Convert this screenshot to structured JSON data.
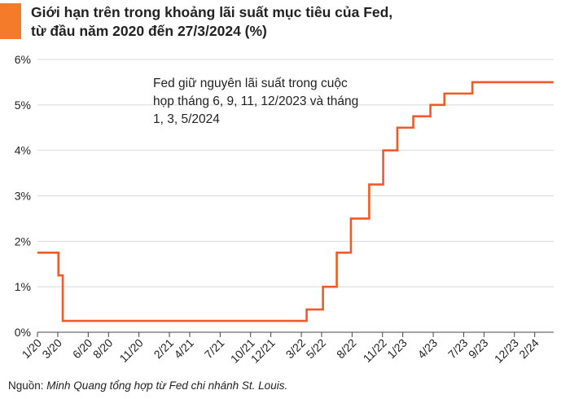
{
  "title_lines": [
    "Giới hạn trên trong khoảng lãi suất mục tiêu của Fed,",
    "từ đầu năm 2020 đến 27/3/2024 (%)"
  ],
  "source": {
    "prefix": "Nguồn: ",
    "text": "Minh Quang tổng hợp từ Fed chi nhánh St. Louis."
  },
  "colors": {
    "accent": "#f47b2a",
    "line": "#f05a28",
    "grid": "#d9d9d9",
    "axis": "#444444"
  },
  "chart_data": {
    "type": "line",
    "title": "Giới hạn trên trong khoảng lãi suất mục tiêu của Fed, từ đầu năm 2020 đến 27/3/2024 (%)",
    "xlabel": "",
    "ylabel": "",
    "ylim": [
      0,
      6
    ],
    "y_ticks": [
      0,
      1,
      2,
      3,
      4,
      5,
      6
    ],
    "y_tick_labels": [
      "0%",
      "1%",
      "2%",
      "3%",
      "4%",
      "5%",
      "6%"
    ],
    "x_tick_labels": [
      "1/20",
      "3/20",
      "6/20",
      "8/20",
      "11/20",
      "2/21",
      "4/21",
      "7/21",
      "10/21",
      "12/21",
      "3/22",
      "5/22",
      "8/22",
      "11/22",
      "1/23",
      "4/23",
      "7/23",
      "9/23",
      "12/23",
      "2/24"
    ],
    "x_tick_months": [
      0,
      2,
      5,
      7,
      10,
      13,
      15,
      18,
      21,
      23,
      26,
      28,
      31,
      34,
      36,
      39,
      42,
      44,
      47,
      49
    ],
    "x_range_months": [
      0,
      50.87
    ],
    "grid": "horizontal",
    "series": [
      {
        "values_step": [
          {
            "date": "2020-01-01",
            "value": 1.75
          },
          {
            "date": "2020-03-03",
            "value": 1.25
          },
          {
            "date": "2020-03-16",
            "value": 0.25
          },
          {
            "date": "2022-03-17",
            "value": 0.5
          },
          {
            "date": "2022-05-05",
            "value": 1.0
          },
          {
            "date": "2022-06-16",
            "value": 1.75
          },
          {
            "date": "2022-07-28",
            "value": 2.5
          },
          {
            "date": "2022-09-22",
            "value": 3.25
          },
          {
            "date": "2022-11-03",
            "value": 4.0
          },
          {
            "date": "2022-12-15",
            "value": 4.5
          },
          {
            "date": "2023-02-02",
            "value": 4.75
          },
          {
            "date": "2023-03-23",
            "value": 5.0
          },
          {
            "date": "2023-05-04",
            "value": 5.25
          },
          {
            "date": "2023-07-27",
            "value": 5.5
          },
          {
            "date": "2024-03-27",
            "value": 5.5
          }
        ]
      }
    ],
    "annotation": "Fed giữ nguyên lãi suất trong cuộc họp tháng 6, 9, 11, 12/2023 và tháng 1, 3, 5/2024"
  }
}
